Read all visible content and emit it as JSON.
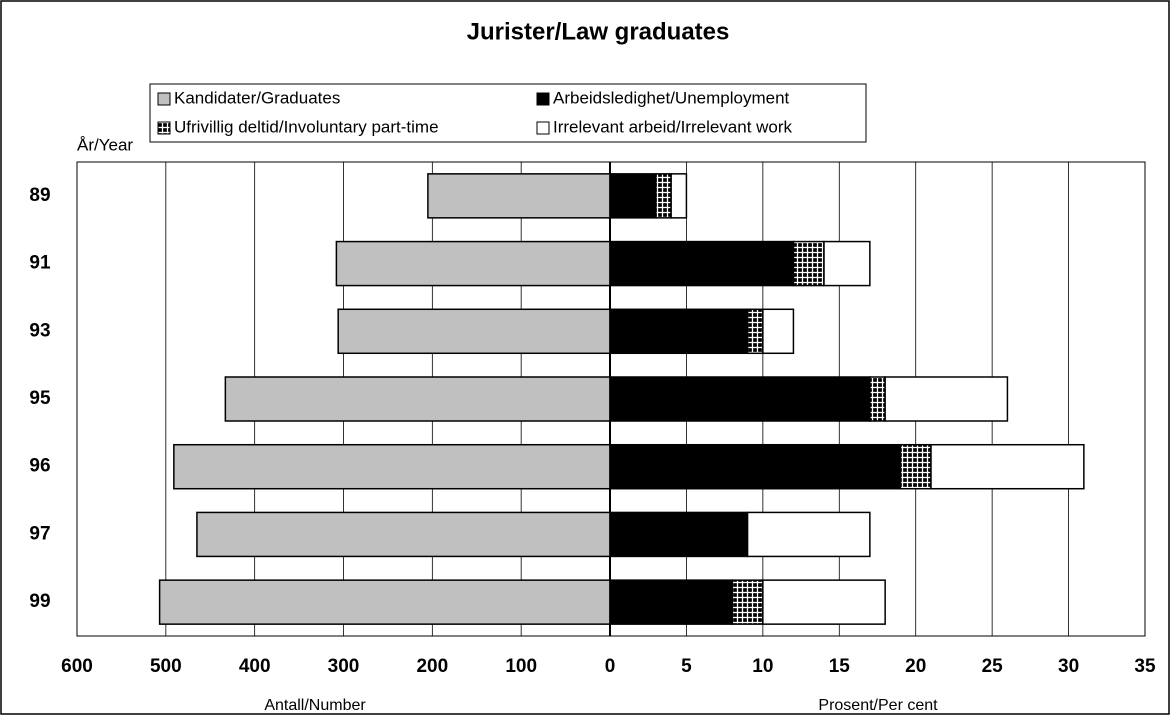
{
  "chart_data": {
    "type": "butterfly",
    "title": "Jurister/Law graduates",
    "y_label": "År/Year",
    "x_label": "Antall/Number",
    "x2_label": "Prosent/Per cent",
    "categories": [
      "89",
      "91",
      "93",
      "95",
      "96",
      "97",
      "99"
    ],
    "xlim": [
      600,
      0
    ],
    "xticks": [
      600,
      500,
      400,
      300,
      200,
      100,
      0
    ],
    "x2lim": [
      0,
      35
    ],
    "x2ticks": [
      5,
      10,
      15,
      20,
      25,
      30,
      35
    ],
    "grid": true,
    "series": [
      {
        "name": "Kandidater/Graduates",
        "color": "#c0c0c0",
        "axis": "x",
        "values": [
          205,
          308,
          306,
          433,
          491,
          465,
          507
        ]
      },
      {
        "name": "Arbeidsledighet/Unemployment",
        "color": "#000000",
        "axis": "x2",
        "values": [
          3,
          12,
          9,
          17,
          19,
          9,
          8
        ]
      },
      {
        "name": "Ufrivillig deltid/Involuntary part-time",
        "color": "#000000",
        "pattern": "grid",
        "axis": "x2",
        "values": [
          1,
          2,
          1,
          1,
          2,
          0,
          2
        ]
      },
      {
        "name": "Irrelevant arbeid/Irrelevant work",
        "color": "#ffffff",
        "axis": "x2",
        "values": [
          1,
          3,
          2,
          8,
          10,
          8,
          8
        ]
      }
    ]
  }
}
